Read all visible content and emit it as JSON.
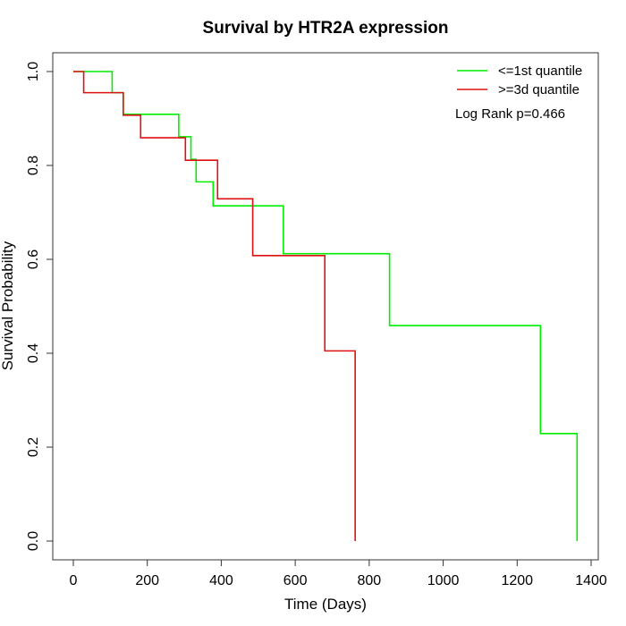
{
  "chart_data": {
    "type": "line",
    "title": "Survival by HTR2A expression",
    "xlabel": "Time (Days)",
    "ylabel": "Survival Probability",
    "xlim": [
      0,
      1400
    ],
    "ylim": [
      0,
      1.0
    ],
    "xticks": [
      0,
      200,
      400,
      600,
      800,
      1000,
      1200,
      1400
    ],
    "yticks": [
      0.0,
      0.2,
      0.4,
      0.6,
      0.8,
      1.0
    ],
    "xtick_labels": [
      "0",
      "200",
      "400",
      "600",
      "800",
      "1000",
      "1200",
      "1400"
    ],
    "ytick_labels": [
      "0.0",
      "0.2",
      "0.4",
      "0.6",
      "0.8",
      "1.0"
    ],
    "legend_position": "top-right",
    "annotation": "Log Rank p=0.466",
    "series": [
      {
        "name": "<=1st quantile",
        "color": "#00ee00",
        "step": true,
        "x": [
          0,
          105,
          135,
          285,
          318,
          332,
          378,
          568,
          855,
          1263,
          1362
        ],
        "y": [
          1.0,
          0.955,
          0.909,
          0.861,
          0.813,
          0.765,
          0.714,
          0.612,
          0.459,
          0.229,
          0.0
        ]
      },
      {
        "name": ">=3d quantile",
        "color": "#dd1111",
        "step": true,
        "x": [
          0,
          28,
          135,
          182,
          303,
          390,
          485,
          680,
          762
        ],
        "y": [
          1.0,
          0.955,
          0.907,
          0.859,
          0.811,
          0.729,
          0.608,
          0.405,
          0.0
        ]
      }
    ]
  }
}
